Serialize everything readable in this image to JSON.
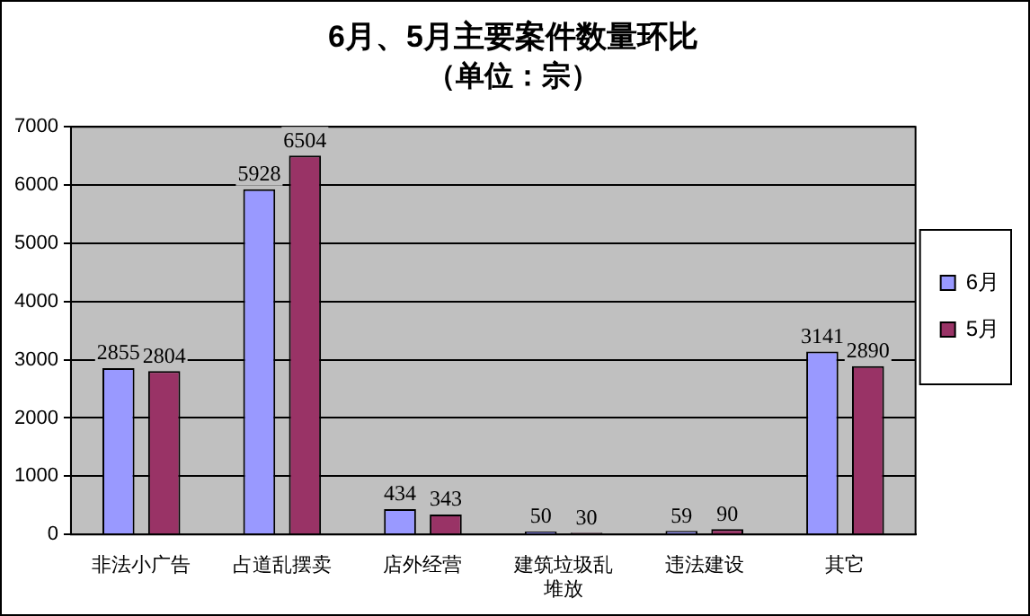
{
  "chart_data": {
    "type": "bar",
    "title": "6月、5月主要案件数量环比",
    "subtitle": "（单位：宗）",
    "categories": [
      "非法小广告",
      "占道乱摆卖",
      "店外经营",
      "建筑垃圾乱堆放",
      "违法建设",
      "其它"
    ],
    "series": [
      {
        "name": "6月",
        "color": "#9999ff",
        "values": [
          2855,
          5928,
          434,
          50,
          59,
          3141
        ]
      },
      {
        "name": "5月",
        "color": "#993366",
        "values": [
          2804,
          6504,
          343,
          30,
          90,
          2890
        ]
      }
    ],
    "ylim": [
      0,
      7000
    ],
    "yticks": [
      0,
      1000,
      2000,
      3000,
      4000,
      5000,
      6000,
      7000
    ],
    "grid": "y",
    "legend": "right",
    "data_labels": true
  }
}
